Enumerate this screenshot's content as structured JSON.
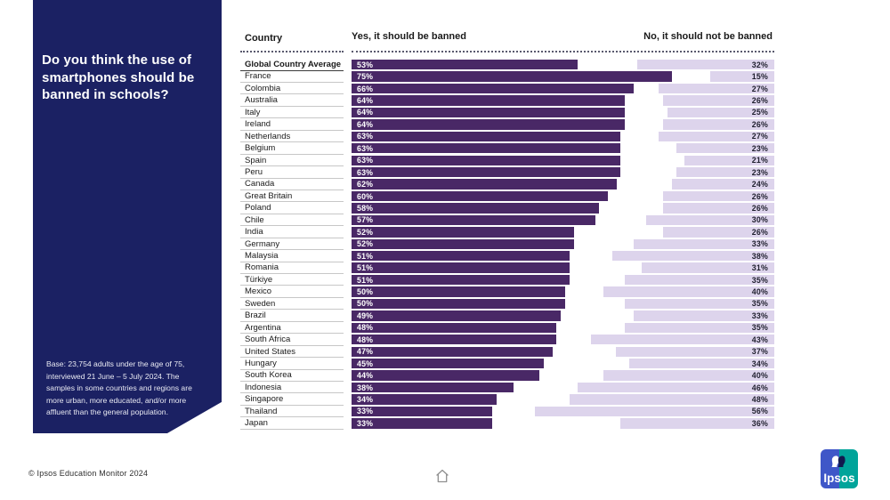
{
  "panel": {
    "question": "Do you think the use of smartphones should be banned in schools?",
    "base_note": "Base: 23,754 adults under the age of 75, interviewed 21 June – 5 July 2024. The samples in some countries and regions are more urban, more educated, and/or more affluent than the general population.",
    "bg_color": "#1b2163"
  },
  "table": {
    "country_header": "Country",
    "yes_header": "Yes, it should be banned",
    "no_header": "No, it should not be banned"
  },
  "chart_data": {
    "type": "bar",
    "orientation": "horizontal",
    "unit": "%",
    "xlim": [
      0,
      100
    ],
    "value_labels": "inside-bars",
    "categories": [
      "Global Country Average",
      "France",
      "Colombia",
      "Australia",
      "Italy",
      "Ireland",
      "Netherlands",
      "Belgium",
      "Spain",
      "Peru",
      "Canada",
      "Great Britain",
      "Poland",
      "Chile",
      "India",
      "Germany",
      "Malaysia",
      "Romania",
      "Türkiye",
      "Mexico",
      "Sweden",
      "Brazil",
      "Argentina",
      "South Africa",
      "United States",
      "Hungary",
      "South Korea",
      "Indonesia",
      "Singapore",
      "Thailand",
      "Japan"
    ],
    "series": [
      {
        "name": "Yes, it should be banned",
        "color": "#492866",
        "align": "left",
        "values": [
          53,
          75,
          66,
          64,
          64,
          64,
          63,
          63,
          63,
          63,
          62,
          60,
          58,
          57,
          52,
          52,
          51,
          51,
          51,
          50,
          50,
          49,
          48,
          48,
          47,
          45,
          44,
          38,
          34,
          33,
          33
        ]
      },
      {
        "name": "No, it should not be banned",
        "color": "#ddd4ec",
        "align": "right",
        "values": [
          32,
          15,
          27,
          26,
          25,
          26,
          27,
          23,
          21,
          23,
          24,
          26,
          26,
          30,
          26,
          33,
          38,
          31,
          35,
          40,
          35,
          33,
          35,
          43,
          37,
          34,
          40,
          46,
          48,
          56,
          36
        ]
      }
    ]
  },
  "footer": {
    "copyright": "© Ipsos Education Monitor 2024",
    "logo_text": "Ipsos"
  },
  "colors": {
    "panel_navy": "#1b2163",
    "bar_yes": "#492866",
    "bar_no": "#ddd4ec",
    "logo_blue": "#3f57c8",
    "logo_teal": "#00a49a"
  }
}
